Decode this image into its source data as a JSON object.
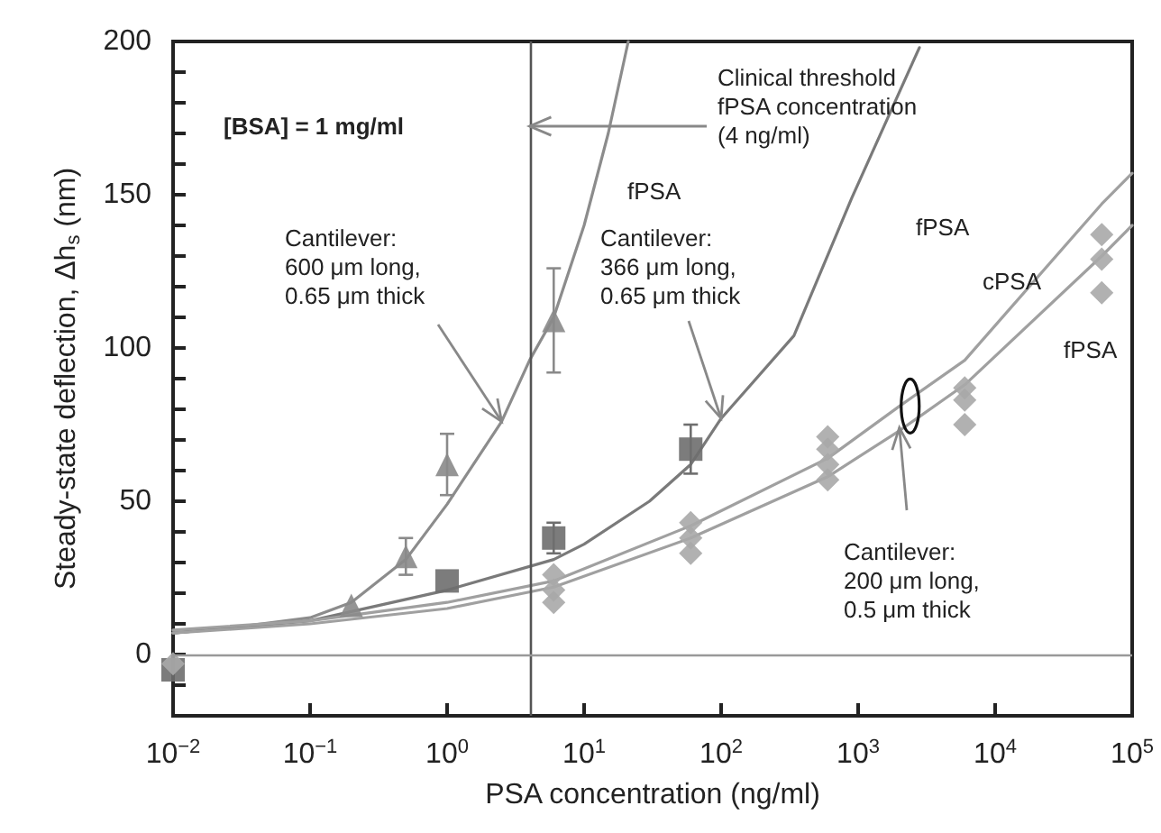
{
  "chart_data": {
    "type": "scatter",
    "xlabel": "PSA concentration (ng/ml)",
    "ylabel": "Steady-state deflection, Δh$_{s}$ (nm)",
    "log": "x",
    "xlim": [
      0.01,
      100000
    ],
    "xticks": [
      {
        "value": 0.01,
        "label": "10$^{−2}$"
      },
      {
        "value": 0.1,
        "label": "10$^{−1}$"
      },
      {
        "value": 1,
        "label": "10$^{0}$"
      },
      {
        "value": 10,
        "label": "10$^{1}$"
      },
      {
        "value": 100,
        "label": "10$^{2}$"
      },
      {
        "value": 1000,
        "label": "10$^{3}$"
      },
      {
        "value": 10000,
        "label": "10$^{4}$"
      },
      {
        "value": 100000,
        "label": "10$^{5}$"
      }
    ],
    "ylim": [
      -20,
      200
    ],
    "yticks": [
      {
        "value": -20,
        "label": null
      },
      {
        "value": -10,
        "label": null
      },
      0,
      {
        "value": 10,
        "label": null
      },
      {
        "value": 20,
        "label": null
      },
      {
        "value": 30,
        "label": null
      },
      {
        "value": 40,
        "label": null
      },
      50,
      {
        "value": 60,
        "label": null
      },
      {
        "value": 70,
        "label": null
      },
      {
        "value": 80,
        "label": null
      },
      {
        "value": 90,
        "label": null
      },
      100,
      {
        "value": 110,
        "label": null
      },
      {
        "value": 120,
        "label": null
      },
      {
        "value": 130,
        "label": null
      },
      {
        "value": 140,
        "label": null
      },
      150,
      {
        "value": 160,
        "label": null
      },
      {
        "value": 170,
        "label": null
      },
      {
        "value": 180,
        "label": null
      },
      {
        "value": 190,
        "label": null
      },
      200
    ],
    "grid": false,
    "series": [
      {
        "type": "line",
        "color": "#8c8c8c",
        "marker": "none",
        "x": [
          0.01,
          0.03,
          0.1,
          0.2,
          0.5,
          1,
          2.5,
          4,
          6,
          10,
          15,
          21
        ],
        "values": [
          7,
          9,
          12,
          17,
          31,
          49,
          76,
          96,
          110,
          140,
          170,
          200
        ]
      },
      {
        "type": "line",
        "color": "#7a7a7a",
        "marker": "none",
        "x": [
          0.01,
          0.1,
          1,
          6,
          10,
          30,
          60,
          100,
          340,
          900,
          2800
        ],
        "values": [
          7,
          11,
          21,
          31,
          36,
          50,
          62,
          77,
          104,
          149,
          198
        ]
      },
      {
        "type": "line",
        "color": "#a0a0a0",
        "marker": "none",
        "x": [
          0.01,
          0.1,
          1,
          6,
          60,
          600,
          2000,
          6000,
          60000,
          100000
        ],
        "values": [
          8,
          11,
          17,
          24,
          42,
          64,
          81,
          96,
          147,
          157
        ]
      },
      {
        "type": "line",
        "color": "#a0a0a0",
        "marker": "none",
        "x": [
          0.01,
          0.1,
          1,
          6,
          60,
          600,
          2000,
          6000,
          60000,
          100000
        ],
        "values": [
          7,
          10,
          15,
          22,
          38,
          58,
          73,
          88,
          130,
          140
        ]
      },
      {
        "type": "scatter",
        "color": "#8a8a8a",
        "marker": "triangle",
        "x": [
          0.2,
          0.5,
          1,
          6
        ],
        "values": [
          16,
          32,
          62,
          109
        ],
        "errors": [
          null,
          6,
          10,
          17
        ]
      },
      {
        "type": "scatter",
        "color": "#6e6e6e",
        "marker": "square",
        "x": [
          0.01,
          1,
          6,
          60
        ],
        "values": [
          -5,
          24,
          38,
          67
        ],
        "errors": [
          null,
          null,
          5,
          8
        ]
      },
      {
        "type": "scatter",
        "color": "#a8a8a8",
        "marker": "diamond",
        "x": [
          0.01,
          6,
          6,
          6,
          60,
          60,
          60,
          600,
          600,
          600,
          600,
          6000,
          6000,
          6000,
          60000,
          60000,
          60000
        ],
        "values": [
          -3,
          17,
          21,
          26,
          33,
          38,
          43,
          57,
          62,
          67,
          71,
          75,
          83,
          87,
          118,
          129,
          137
        ]
      }
    ],
    "ref_lines": [
      {
        "axis": "x",
        "value": 4,
        "color": "#555555"
      },
      {
        "axis": "y",
        "value": 0,
        "color": "#999999"
      }
    ],
    "annotations": [
      "[BSA] = 1 mg/ml",
      {
        "text": "Clinical threshold\nfPSA concentration\n(4 ng/ml)",
        "x": 4,
        "y": 170
      },
      {
        "text": "Cantilever:\n600 μm long,\n0.65 μm thick",
        "x": 2.5,
        "y": 76
      },
      {
        "text": "Cantilever:\n366 μm long,\n0.65 μm thick",
        "x": 100,
        "y": 77
      },
      {
        "text": "Cantilever:\n200 μm long,\n0.5 μm thick",
        "x": 2000,
        "y": 74
      },
      "fPSA",
      "fPSA",
      "cPSA",
      "fPSA"
    ]
  }
}
